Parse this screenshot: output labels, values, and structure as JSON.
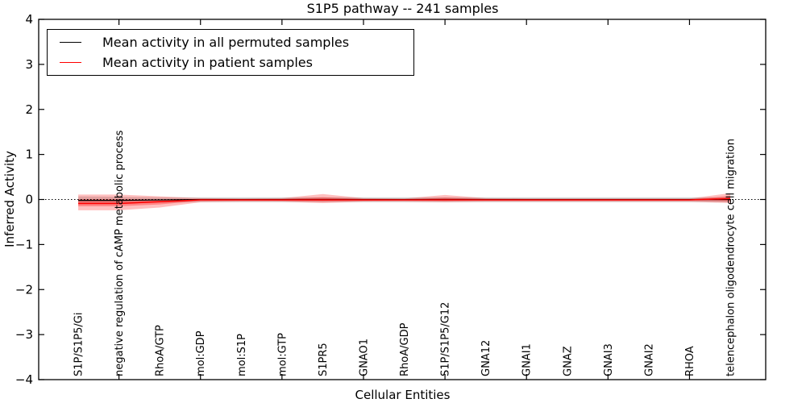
{
  "figure": {
    "title": "S1P5 pathway -- 241 samples",
    "background_color": "#ffffff"
  },
  "legend": {
    "entries": [
      {
        "label": "Mean activity in all permuted samples",
        "color": "#000000"
      },
      {
        "label": "Mean activity in patient samples",
        "color": "#ff0000"
      }
    ]
  },
  "chart_data": {
    "type": "line",
    "title": "S1P5 pathway -- 241 samples",
    "xlabel": "Cellular Entities",
    "ylabel": "Inferred Activity",
    "ylim": [
      -4,
      4
    ],
    "xlim": [
      -0.97,
      16.87
    ],
    "yticks": [
      4,
      3,
      2,
      1,
      0,
      -1,
      -2,
      -3,
      -4
    ],
    "grid": false,
    "legend_position": "upper left",
    "zero_line": {
      "y": 0,
      "style": "dotted",
      "color": "#000000"
    },
    "categories": [
      "S1P/S1P5/Gi",
      "negative regulation of cAMP metabolic process",
      "RhoA/GTP",
      "mol:GDP",
      "mol:S1P",
      "mol:GTP",
      "S1PR5",
      "GNAO1",
      "RhoA/GDP",
      "S1P/S1P5/G12",
      "GNA12",
      "GNAI1",
      "GNAZ",
      "GNAI3",
      "GNAI2",
      "RHOA",
      "telencephalon oligodendrocyte cell migration"
    ],
    "series": [
      {
        "name": "Mean activity in all permuted samples",
        "color": "#000000",
        "line_width": 1.2,
        "values": [
          -0.02,
          -0.02,
          -0.01,
          0,
          0,
          0,
          0,
          0,
          0,
          0,
          0,
          0,
          0,
          0,
          0,
          0,
          0
        ],
        "bands": [
          {
            "upper": [
              0.07,
              0.06,
              0.05,
              0.05,
              0.05,
              0.05,
              0.05,
              0.05,
              0.05,
              0.05,
              0.05,
              0.05,
              0.05,
              0.05,
              0.05,
              0.05,
              0.05
            ],
            "lower": [
              -0.09,
              -0.08,
              -0.07,
              -0.06,
              -0.06,
              -0.06,
              -0.06,
              -0.06,
              -0.06,
              -0.06,
              -0.06,
              -0.06,
              -0.06,
              -0.06,
              -0.06,
              -0.06,
              -0.06
            ],
            "color": "#000000",
            "opacity": 0.15
          }
        ]
      },
      {
        "name": "Mean activity in patient samples",
        "color": "#ff0000",
        "line_width": 1.5,
        "values": [
          -0.09,
          -0.09,
          -0.05,
          -0.01,
          -0.01,
          -0.01,
          -0.01,
          -0.01,
          -0.01,
          -0.01,
          -0.01,
          -0.01,
          -0.01,
          -0.01,
          -0.01,
          -0.01,
          0.02
        ],
        "bands": [
          {
            "upper": [
              0.11,
              0.11,
              0.07,
              0.03,
              0.02,
              0.03,
              0.12,
              0.03,
              0.02,
              0.1,
              0.03,
              0.02,
              0.02,
              0.02,
              0.02,
              0.02,
              0.14
            ],
            "lower": [
              -0.24,
              -0.24,
              -0.18,
              -0.06,
              -0.05,
              -0.05,
              -0.08,
              -0.05,
              -0.05,
              -0.06,
              -0.05,
              -0.05,
              -0.05,
              -0.05,
              -0.05,
              -0.05,
              -0.08
            ],
            "color": "#ff0000",
            "opacity": 0.25
          },
          {
            "upper": [
              0.01,
              0.01,
              0.0,
              0.01,
              0.0,
              0.01,
              0.05,
              0.01,
              0.0,
              0.04,
              0.01,
              0.0,
              0.0,
              0.0,
              0.0,
              0.0,
              0.08
            ],
            "lower": [
              -0.15,
              -0.15,
              -0.11,
              -0.03,
              -0.02,
              -0.03,
              -0.04,
              -0.03,
              -0.02,
              -0.03,
              -0.02,
              -0.02,
              -0.02,
              -0.02,
              -0.02,
              -0.02,
              -0.04
            ],
            "color": "#ff0000",
            "opacity": 0.3
          }
        ]
      }
    ]
  }
}
